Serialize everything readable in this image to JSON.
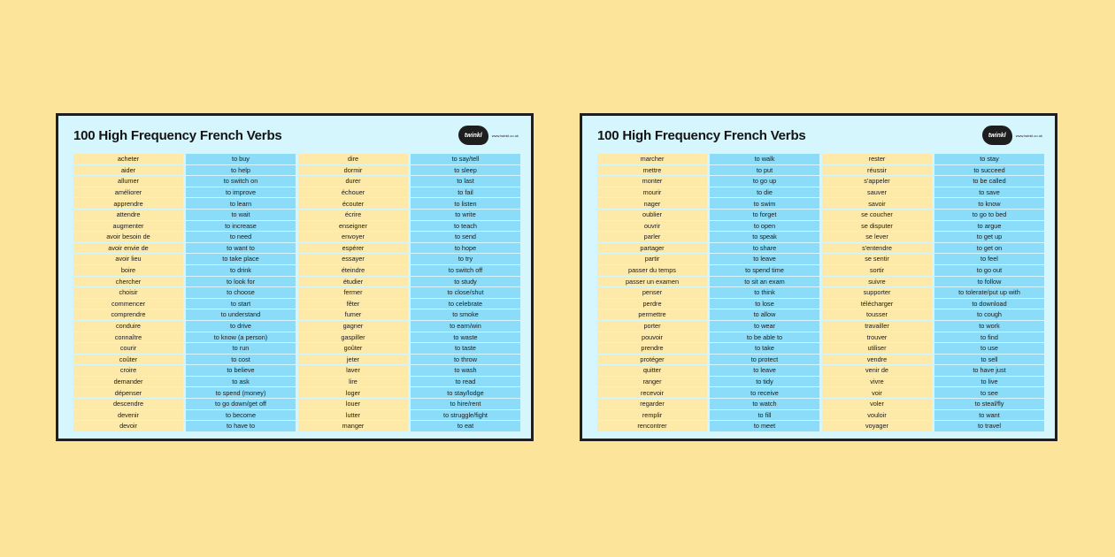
{
  "sheets": [
    {
      "title": "100 High Frequency French Verbs",
      "brand": {
        "logo": "twinkl",
        "url": "www.twinkl.co.uk"
      },
      "left": [
        [
          "acheter",
          "to buy"
        ],
        [
          "aider",
          "to help"
        ],
        [
          "allumer",
          "to switch on"
        ],
        [
          "améliorer",
          "to improve"
        ],
        [
          "apprendre",
          "to learn"
        ],
        [
          "attendre",
          "to wait"
        ],
        [
          "augmenter",
          "to increase"
        ],
        [
          "avoir besoin de",
          "to need"
        ],
        [
          "avoir envie de",
          "to want to"
        ],
        [
          "avoir lieu",
          "to take place"
        ],
        [
          "boire",
          "to drink"
        ],
        [
          "chercher",
          "to look for"
        ],
        [
          "choisir",
          "to choose"
        ],
        [
          "commencer",
          "to start"
        ],
        [
          "comprendre",
          "to understand"
        ],
        [
          "conduire",
          "to drive"
        ],
        [
          "connaître",
          "to know (a person)"
        ],
        [
          "courir",
          "to run"
        ],
        [
          "coûter",
          "to cost"
        ],
        [
          "croire",
          "to believe"
        ],
        [
          "demander",
          "to ask"
        ],
        [
          "dépenser",
          "to spend (money)"
        ],
        [
          "descendre",
          "to go down/get off"
        ],
        [
          "devenir",
          "to become"
        ],
        [
          "devoir",
          "to have to"
        ]
      ],
      "right": [
        [
          "dire",
          "to say/tell"
        ],
        [
          "dormir",
          "to sleep"
        ],
        [
          "durer",
          "to last"
        ],
        [
          "échouer",
          "to fail"
        ],
        [
          "écouter",
          "to listen"
        ],
        [
          "écrire",
          "to write"
        ],
        [
          "enseigner",
          "to teach"
        ],
        [
          "envoyer",
          "to send"
        ],
        [
          "espérer",
          "to hope"
        ],
        [
          "essayer",
          "to try"
        ],
        [
          "éteindre",
          "to switch off"
        ],
        [
          "étudier",
          "to study"
        ],
        [
          "fermer",
          "to close/shut"
        ],
        [
          "fêter",
          "to celebrate"
        ],
        [
          "fumer",
          "to smoke"
        ],
        [
          "gagner",
          "to earn/win"
        ],
        [
          "gaspiller",
          "to waste"
        ],
        [
          "goûter",
          "to taste"
        ],
        [
          "jeter",
          "to throw"
        ],
        [
          "laver",
          "to wash"
        ],
        [
          "lire",
          "to read"
        ],
        [
          "loger",
          "to stay/lodge"
        ],
        [
          "louer",
          "to hire/rent"
        ],
        [
          "lutter",
          "to struggle/fight"
        ],
        [
          "manger",
          "to eat"
        ]
      ]
    },
    {
      "title": "100 High Frequency French Verbs",
      "brand": {
        "logo": "twinkl",
        "url": "www.twinkl.co.uk"
      },
      "left": [
        [
          "marcher",
          "to walk"
        ],
        [
          "mettre",
          "to put"
        ],
        [
          "monter",
          "to go up"
        ],
        [
          "mourir",
          "to die"
        ],
        [
          "nager",
          "to swim"
        ],
        [
          "oublier",
          "to forget"
        ],
        [
          "ouvrir",
          "to open"
        ],
        [
          "parler",
          "to speak"
        ],
        [
          "partager",
          "to share"
        ],
        [
          "partir",
          "to leave"
        ],
        [
          "passer du temps",
          "to spend time"
        ],
        [
          "passer un examen",
          "to sit an exam"
        ],
        [
          "penser",
          "to think"
        ],
        [
          "perdre",
          "to lose"
        ],
        [
          "permettre",
          "to allow"
        ],
        [
          "porter",
          "to wear"
        ],
        [
          "pouvoir",
          "to be able to"
        ],
        [
          "prendre",
          "to take"
        ],
        [
          "protéger",
          "to protect"
        ],
        [
          "quitter",
          "to leave"
        ],
        [
          "ranger",
          "to tidy"
        ],
        [
          "recevoir",
          "to receive"
        ],
        [
          "regarder",
          "to watch"
        ],
        [
          "remplir",
          "to fill"
        ],
        [
          "rencontrer",
          "to meet"
        ]
      ],
      "right": [
        [
          "rester",
          "to stay"
        ],
        [
          "réussir",
          "to succeed"
        ],
        [
          "s'appeler",
          "to be called"
        ],
        [
          "sauver",
          "to save"
        ],
        [
          "savoir",
          "to know"
        ],
        [
          "se coucher",
          "to go to bed"
        ],
        [
          "se disputer",
          "to argue"
        ],
        [
          "se lever",
          "to get up"
        ],
        [
          "s'entendre",
          "to get on"
        ],
        [
          "se sentir",
          "to feel"
        ],
        [
          "sortir",
          "to go out"
        ],
        [
          "suivre",
          "to follow"
        ],
        [
          "supporter",
          "to tolerate/put up with"
        ],
        [
          "télécharger",
          "to download"
        ],
        [
          "tousser",
          "to cough"
        ],
        [
          "travailler",
          "to work"
        ],
        [
          "trouver",
          "to find"
        ],
        [
          "utiliser",
          "to use"
        ],
        [
          "vendre",
          "to sell"
        ],
        [
          "venir de",
          "to have just"
        ],
        [
          "vivre",
          "to live"
        ],
        [
          "voir",
          "to see"
        ],
        [
          "voler",
          "to steal/fly"
        ],
        [
          "vouloir",
          "to want"
        ],
        [
          "voyager",
          "to travel"
        ]
      ]
    }
  ]
}
